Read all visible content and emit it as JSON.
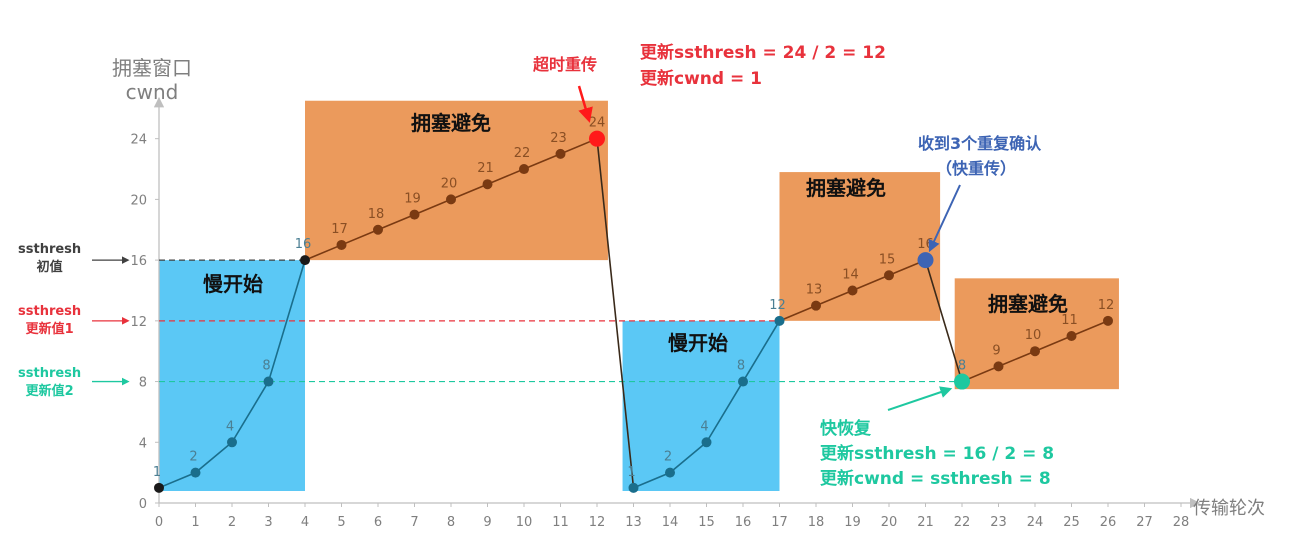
{
  "axis": {
    "ylabel_line1": "拥塞窗口",
    "ylabel_line2": "cwnd",
    "xlabel": "传输轮次",
    "yticks": [
      0,
      4,
      8,
      12,
      16,
      20,
      24
    ],
    "xticks": [
      0,
      1,
      2,
      3,
      4,
      5,
      6,
      7,
      8,
      9,
      10,
      11,
      12,
      13,
      14,
      15,
      16,
      17,
      18,
      19,
      20,
      21,
      22,
      23,
      24,
      25,
      26,
      27,
      28
    ],
    "ylim": [
      0,
      24
    ],
    "xlim": [
      0,
      28
    ]
  },
  "chart_data": {
    "type": "line",
    "segments": [
      {
        "x": [
          0,
          1,
          2,
          3,
          4
        ],
        "y": [
          1,
          2,
          4,
          8,
          16
        ]
      },
      {
        "x": [
          4,
          5,
          6,
          7,
          8,
          9,
          10,
          11,
          12
        ],
        "y": [
          16,
          17,
          18,
          19,
          20,
          21,
          22,
          23,
          24
        ]
      },
      {
        "x": [
          12,
          13
        ],
        "y": [
          24,
          1
        ]
      },
      {
        "x": [
          13,
          14,
          15,
          16,
          17
        ],
        "y": [
          1,
          2,
          4,
          8,
          12
        ]
      },
      {
        "x": [
          17,
          18,
          19,
          20,
          21
        ],
        "y": [
          12,
          13,
          14,
          15,
          16
        ]
      },
      {
        "x": [
          21,
          22
        ],
        "y": [
          16,
          8
        ]
      },
      {
        "x": [
          22,
          23,
          24,
          25,
          26
        ],
        "y": [
          8,
          9,
          10,
          11,
          12
        ]
      }
    ],
    "points": [
      {
        "x": 0,
        "y": 1,
        "label": "1"
      },
      {
        "x": 1,
        "y": 2,
        "label": "2"
      },
      {
        "x": 2,
        "y": 4,
        "label": "4"
      },
      {
        "x": 3,
        "y": 8,
        "label": "8"
      },
      {
        "x": 4,
        "y": 16,
        "label": "16"
      },
      {
        "x": 5,
        "y": 17,
        "label": "17"
      },
      {
        "x": 6,
        "y": 18,
        "label": "18"
      },
      {
        "x": 7,
        "y": 19,
        "label": "19"
      },
      {
        "x": 8,
        "y": 20,
        "label": "20"
      },
      {
        "x": 9,
        "y": 21,
        "label": "21"
      },
      {
        "x": 10,
        "y": 22,
        "label": "22"
      },
      {
        "x": 11,
        "y": 23,
        "label": "23"
      },
      {
        "x": 12,
        "y": 24,
        "label": "24",
        "special": "timeout"
      },
      {
        "x": 13,
        "y": 1,
        "label": "1"
      },
      {
        "x": 14,
        "y": 2,
        "label": "2"
      },
      {
        "x": 15,
        "y": 4,
        "label": "4"
      },
      {
        "x": 16,
        "y": 8,
        "label": "8"
      },
      {
        "x": 17,
        "y": 12,
        "label": "12"
      },
      {
        "x": 18,
        "y": 13,
        "label": "13"
      },
      {
        "x": 19,
        "y": 14,
        "label": "14"
      },
      {
        "x": 20,
        "y": 15,
        "label": "15"
      },
      {
        "x": 21,
        "y": 16,
        "label": "16",
        "special": "dupack"
      },
      {
        "x": 22,
        "y": 8,
        "label": "8",
        "special": "fastrecovery"
      },
      {
        "x": 23,
        "y": 9,
        "label": "9"
      },
      {
        "x": 24,
        "y": 10,
        "label": "10"
      },
      {
        "x": 25,
        "y": 11,
        "label": "11"
      },
      {
        "x": 26,
        "y": 12,
        "label": "12"
      }
    ],
    "thresholds": [
      {
        "y": 16,
        "x_end": 4,
        "color": "#404040",
        "label_line1": "ssthresh",
        "label_line2": "初值"
      },
      {
        "y": 12,
        "x_end": 17,
        "color": "#e8323c",
        "label_line1": "ssthresh",
        "label_line2": "更新值1"
      },
      {
        "y": 8,
        "x_end": 22,
        "color": "#1ec8a0",
        "label_line1": "ssthresh",
        "label_line2": "更新值2"
      }
    ],
    "regions": [
      {
        "kind": "slow-start",
        "title": "慢开始",
        "x0": 0,
        "x1": 4,
        "y0": 0,
        "y1": 16,
        "color": "#5bc8f5"
      },
      {
        "kind": "avoid",
        "title": "拥塞避免",
        "x0": 4,
        "x1": 12.3,
        "y0": 16,
        "y1": 26.5,
        "color": "#eb9a5c"
      },
      {
        "kind": "slow-start",
        "title": "慢开始",
        "x0": 12.7,
        "x1": 17,
        "y0": 0,
        "y1": 12,
        "color": "#5bc8f5"
      },
      {
        "kind": "avoid",
        "title": "拥塞避免",
        "x0": 17,
        "x1": 21.4,
        "y0": 12,
        "y1": 21.8,
        "color": "#eb9a5c"
      },
      {
        "kind": "avoid",
        "title": "拥塞避免",
        "x0": 21.8,
        "x1": 26.3,
        "y0": 7.5,
        "y1": 14.8,
        "color": "#eb9a5c"
      }
    ]
  },
  "annotations": {
    "timeout": "超时重传",
    "timeout_update1": "更新ssthresh = 24 / 2 = 12",
    "timeout_update2": "更新cwnd = 1",
    "dupack1": "收到3个重复确认",
    "dupack2": "（快重传）",
    "fastrec1": "快恢复",
    "fastrec2": "更新ssthresh = 16 / 2 = 8",
    "fastrec3": "更新cwnd = ssthresh = 8"
  },
  "colors": {
    "line": "#1a6e8c",
    "line_avoid": "#7a3a12",
    "marker_ss": "#1a6e8c",
    "marker_avoid": "#7a3a12",
    "timeout_marker": "#ff1a1a",
    "dupack_marker": "#3d64b4",
    "fastrec_marker": "#1ec8a0",
    "axis": "#bfbfbf",
    "tick": "#7f7f7f"
  }
}
